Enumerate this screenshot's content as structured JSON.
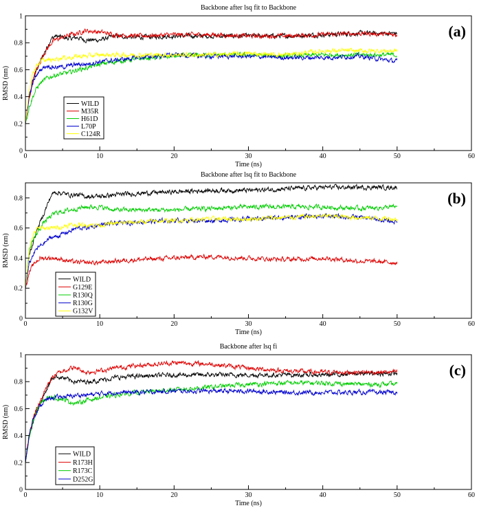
{
  "chart_data": [
    {
      "panel": "(a)",
      "type": "line",
      "title": "Backbone after lsq fit to Backbone",
      "xlabel": "Time (ns)",
      "ylabel": "RMSD (nm)",
      "xlim": [
        0,
        60
      ],
      "ylim": [
        0,
        1
      ],
      "x_ticks": [
        "0",
        "10",
        "20",
        "30",
        "40",
        "50",
        "60"
      ],
      "y_ticks": [
        "0",
        "0.2",
        "0.4",
        "0.6",
        "0.8",
        "1"
      ],
      "legend": [
        "WILD",
        "M35R",
        "H61D",
        "L70P",
        "C124R"
      ],
      "series": [
        {
          "name": "WILD",
          "color": "#000000",
          "x": [
            0,
            0.5,
            1,
            1.5,
            2,
            2.5,
            3,
            3.5,
            4,
            5,
            6,
            7,
            8,
            10,
            12,
            15,
            20,
            25,
            30,
            35,
            40,
            45,
            50
          ],
          "values": [
            0.2,
            0.4,
            0.52,
            0.6,
            0.66,
            0.72,
            0.78,
            0.83,
            0.85,
            0.84,
            0.83,
            0.84,
            0.82,
            0.82,
            0.85,
            0.84,
            0.85,
            0.85,
            0.85,
            0.85,
            0.86,
            0.87,
            0.87
          ]
        },
        {
          "name": "M35R",
          "color": "#dd0000",
          "x": [
            0,
            0.5,
            1,
            1.5,
            2,
            2.5,
            3,
            3.5,
            4,
            5,
            6,
            7,
            8,
            10,
            12,
            15,
            20,
            25,
            30,
            35,
            40,
            45,
            50
          ],
          "values": [
            0.2,
            0.38,
            0.52,
            0.6,
            0.66,
            0.72,
            0.76,
            0.8,
            0.82,
            0.84,
            0.86,
            0.87,
            0.89,
            0.88,
            0.86,
            0.85,
            0.86,
            0.86,
            0.85,
            0.85,
            0.86,
            0.87,
            0.86
          ]
        },
        {
          "name": "H61D",
          "color": "#00cc00",
          "x": [
            0,
            0.5,
            1,
            1.5,
            2,
            2.5,
            3,
            3.5,
            4,
            5,
            6,
            7,
            8,
            10,
            12,
            15,
            20,
            25,
            30,
            35,
            40,
            45,
            50
          ],
          "values": [
            0.2,
            0.32,
            0.4,
            0.46,
            0.5,
            0.52,
            0.54,
            0.55,
            0.56,
            0.57,
            0.58,
            0.6,
            0.61,
            0.64,
            0.66,
            0.68,
            0.7,
            0.71,
            0.71,
            0.7,
            0.71,
            0.71,
            0.71
          ]
        },
        {
          "name": "L70P",
          "color": "#0000cc",
          "x": [
            0,
            0.5,
            1,
            1.5,
            2,
            2.5,
            3,
            3.5,
            4,
            5,
            6,
            7,
            8,
            10,
            12,
            15,
            20,
            25,
            30,
            35,
            40,
            45,
            50
          ],
          "values": [
            0.2,
            0.4,
            0.5,
            0.56,
            0.6,
            0.62,
            0.63,
            0.62,
            0.62,
            0.62,
            0.63,
            0.64,
            0.64,
            0.66,
            0.67,
            0.69,
            0.71,
            0.7,
            0.7,
            0.69,
            0.69,
            0.7,
            0.66
          ]
        },
        {
          "name": "C124R",
          "color": "#ffff00",
          "x": [
            0,
            0.5,
            1,
            1.5,
            2,
            2.5,
            3,
            3.5,
            4,
            5,
            6,
            7,
            8,
            10,
            12,
            15,
            20,
            25,
            30,
            35,
            40,
            45,
            50
          ],
          "values": [
            0.2,
            0.45,
            0.58,
            0.63,
            0.66,
            0.67,
            0.67,
            0.67,
            0.68,
            0.69,
            0.69,
            0.7,
            0.7,
            0.71,
            0.71,
            0.71,
            0.71,
            0.71,
            0.72,
            0.71,
            0.74,
            0.74,
            0.74
          ]
        }
      ]
    },
    {
      "panel": "(b)",
      "type": "line",
      "title": "Backbone after lsq fit to Backbone",
      "xlabel": "Time (ns)",
      "ylabel": "RMSD (nm)",
      "xlim": [
        0,
        60
      ],
      "ylim": [
        0,
        0.9
      ],
      "x_ticks": [
        "0",
        "10",
        "20",
        "30",
        "40",
        "50",
        "60"
      ],
      "y_ticks": [
        "0",
        "0.2",
        "0.4",
        "0.6",
        "0.8"
      ],
      "legend": [
        "WILD",
        "G129E",
        "R130Q",
        "R130G",
        "G132V"
      ],
      "series": [
        {
          "name": "WILD",
          "color": "#000000",
          "x": [
            0,
            0.5,
            1,
            1.5,
            2,
            2.5,
            3,
            3.5,
            4,
            5,
            6,
            7,
            8,
            10,
            12,
            15,
            20,
            25,
            30,
            35,
            40,
            45,
            50
          ],
          "values": [
            0.2,
            0.42,
            0.5,
            0.58,
            0.64,
            0.7,
            0.76,
            0.82,
            0.84,
            0.83,
            0.82,
            0.82,
            0.81,
            0.81,
            0.82,
            0.83,
            0.84,
            0.85,
            0.85,
            0.86,
            0.87,
            0.87,
            0.87
          ]
        },
        {
          "name": "G129E",
          "color": "#dd0000",
          "x": [
            0,
            0.5,
            1,
            1.5,
            2,
            2.5,
            3,
            3.5,
            4,
            5,
            6,
            7,
            8,
            10,
            12,
            15,
            20,
            25,
            30,
            35,
            40,
            45,
            50
          ],
          "values": [
            0.2,
            0.3,
            0.35,
            0.38,
            0.4,
            0.4,
            0.4,
            0.4,
            0.4,
            0.39,
            0.38,
            0.37,
            0.37,
            0.37,
            0.38,
            0.39,
            0.4,
            0.41,
            0.4,
            0.39,
            0.4,
            0.38,
            0.37
          ]
        },
        {
          "name": "R130Q",
          "color": "#00cc00",
          "x": [
            0,
            0.5,
            1,
            1.5,
            2,
            2.5,
            3,
            3.5,
            4,
            5,
            6,
            7,
            8,
            10,
            12,
            15,
            20,
            25,
            30,
            35,
            40,
            45,
            50
          ],
          "values": [
            0.2,
            0.45,
            0.52,
            0.56,
            0.6,
            0.64,
            0.66,
            0.68,
            0.7,
            0.71,
            0.72,
            0.73,
            0.74,
            0.74,
            0.72,
            0.72,
            0.72,
            0.73,
            0.74,
            0.74,
            0.74,
            0.73,
            0.74
          ]
        },
        {
          "name": "R130G",
          "color": "#0000cc",
          "x": [
            0,
            0.5,
            1,
            1.5,
            2,
            2.5,
            3,
            3.5,
            4,
            5,
            6,
            7,
            8,
            10,
            12,
            15,
            20,
            25,
            30,
            35,
            40,
            45,
            50
          ],
          "values": [
            0.2,
            0.36,
            0.42,
            0.46,
            0.48,
            0.5,
            0.52,
            0.54,
            0.54,
            0.56,
            0.58,
            0.6,
            0.6,
            0.62,
            0.63,
            0.64,
            0.65,
            0.65,
            0.66,
            0.67,
            0.68,
            0.67,
            0.64
          ]
        },
        {
          "name": "G132V",
          "color": "#ffff00",
          "x": [
            0,
            0.5,
            1,
            1.5,
            2,
            2.5,
            3,
            3.5,
            4,
            5,
            6,
            7,
            8,
            10,
            12,
            15,
            20,
            25,
            30,
            35,
            40,
            45,
            50
          ],
          "values": [
            0.2,
            0.45,
            0.55,
            0.59,
            0.6,
            0.6,
            0.6,
            0.6,
            0.6,
            0.61,
            0.62,
            0.62,
            0.62,
            0.62,
            0.63,
            0.64,
            0.65,
            0.66,
            0.66,
            0.67,
            0.68,
            0.67,
            0.66
          ]
        }
      ]
    },
    {
      "panel": "(c)",
      "type": "line",
      "title": "Backbone after lsq fi",
      "xlabel": "Time (ns)",
      "ylabel": "RMSD (nm)",
      "xlim": [
        0,
        60
      ],
      "ylim": [
        0,
        1
      ],
      "x_ticks": [
        "0",
        "10",
        "20",
        "30",
        "40",
        "50",
        "60"
      ],
      "y_ticks": [
        "0",
        "0.2",
        "0.4",
        "0.6",
        "0.8",
        "1"
      ],
      "legend": [
        "WILD",
        "R173H",
        "R173C",
        "D252G"
      ],
      "series": [
        {
          "name": "WILD",
          "color": "#000000",
          "x": [
            0,
            0.5,
            1,
            1.5,
            2,
            2.5,
            3,
            3.5,
            4,
            5,
            6,
            7,
            8,
            10,
            12,
            15,
            20,
            25,
            30,
            35,
            40,
            45,
            50
          ],
          "values": [
            0.2,
            0.4,
            0.5,
            0.58,
            0.64,
            0.7,
            0.76,
            0.82,
            0.84,
            0.83,
            0.81,
            0.8,
            0.8,
            0.81,
            0.83,
            0.84,
            0.85,
            0.85,
            0.85,
            0.85,
            0.85,
            0.86,
            0.86
          ]
        },
        {
          "name": "R173H",
          "color": "#dd0000",
          "x": [
            0,
            0.5,
            1,
            1.5,
            2,
            2.5,
            3,
            3.5,
            4,
            5,
            6,
            7,
            8,
            10,
            12,
            15,
            20,
            25,
            30,
            35,
            40,
            45,
            50
          ],
          "values": [
            0.2,
            0.4,
            0.52,
            0.6,
            0.66,
            0.72,
            0.78,
            0.82,
            0.85,
            0.88,
            0.9,
            0.9,
            0.87,
            0.88,
            0.9,
            0.92,
            0.94,
            0.93,
            0.9,
            0.88,
            0.87,
            0.87,
            0.87
          ]
        },
        {
          "name": "R173C",
          "color": "#00cc00",
          "x": [
            0,
            0.5,
            1,
            1.5,
            2,
            2.5,
            3,
            3.5,
            4,
            5,
            6,
            7,
            8,
            10,
            12,
            15,
            20,
            25,
            30,
            35,
            40,
            45,
            50
          ],
          "values": [
            0.2,
            0.38,
            0.5,
            0.58,
            0.63,
            0.66,
            0.68,
            0.69,
            0.68,
            0.67,
            0.65,
            0.64,
            0.66,
            0.68,
            0.7,
            0.72,
            0.74,
            0.76,
            0.78,
            0.79,
            0.79,
            0.78,
            0.78
          ]
        },
        {
          "name": "D252G",
          "color": "#0000cc",
          "x": [
            0,
            0.5,
            1,
            1.5,
            2,
            2.5,
            3,
            3.5,
            4,
            5,
            6,
            7,
            8,
            10,
            12,
            15,
            20,
            25,
            30,
            35,
            40,
            45,
            50
          ],
          "values": [
            0.2,
            0.4,
            0.52,
            0.58,
            0.62,
            0.65,
            0.67,
            0.68,
            0.68,
            0.69,
            0.69,
            0.7,
            0.7,
            0.71,
            0.72,
            0.72,
            0.73,
            0.73,
            0.73,
            0.72,
            0.72,
            0.72,
            0.72
          ]
        }
      ]
    }
  ]
}
